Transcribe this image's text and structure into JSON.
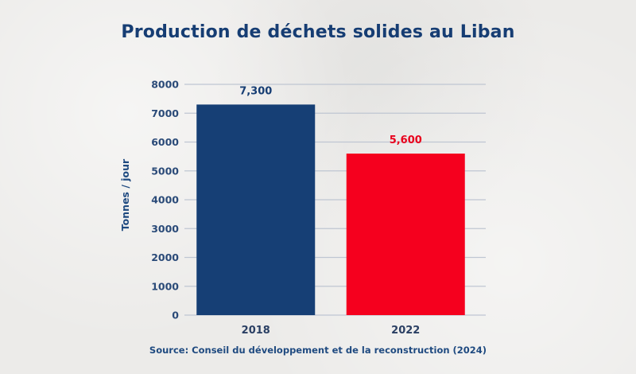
{
  "chart_data": {
    "type": "bar",
    "title": "Production de déchets solides au Liban",
    "xlabel": "",
    "ylabel": "Tonnes / jour",
    "categories": [
      "2018",
      "2022"
    ],
    "values": [
      7300,
      5600
    ],
    "value_labels": [
      "7,300",
      "5,600"
    ],
    "bar_colors": [
      "#163f75",
      "#f5001e"
    ],
    "value_label_colors": [
      "#163d73",
      "#e8001c"
    ],
    "ylim": [
      0,
      8000
    ],
    "yticks": [
      0,
      1000,
      2000,
      3000,
      4000,
      5000,
      6000,
      7000,
      8000
    ],
    "ytick_labels": [
      "0",
      "1000",
      "2000",
      "3000",
      "4000",
      "5000",
      "6000",
      "7000",
      "8000"
    ],
    "grid": true,
    "legend": "none",
    "source": "Source: Conseil du développement et de la reconstruction (2024)"
  }
}
